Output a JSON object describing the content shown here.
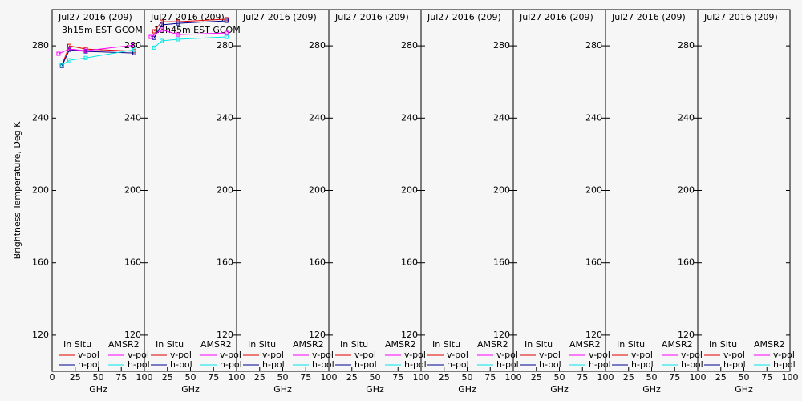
{
  "chart_data": [
    {
      "type": "line",
      "title": "Jul27 2016 (209)",
      "subtitle": "3h15m EST GCOM",
      "y_label": "Brightness Temperature, Deg K",
      "x_label": "GHz",
      "xlim": [
        0,
        100
      ],
      "xticks": [
        0,
        25,
        50,
        75,
        100
      ],
      "ylim": [
        100,
        300
      ],
      "yticks": [
        120,
        160,
        200,
        240,
        280
      ],
      "legend_groups": [
        "In Situ",
        "AMSR2"
      ],
      "series": [
        {
          "name": "v-pol",
          "group": 0,
          "color": "#e00000",
          "x": [
            10.65,
            18.7,
            36.5,
            89
          ],
          "values": [
            269.3,
            280,
            278.2,
            277
          ]
        },
        {
          "name": "h-pol",
          "group": 0,
          "color": "#000090",
          "x": [
            10.65,
            18.7,
            36.5,
            89
          ],
          "values": [
            268.9,
            277.8,
            276.9,
            276
          ]
        },
        {
          "name": "v-pol",
          "group": 1,
          "color": "#ff00ff",
          "x": [
            6.9,
            18.7,
            36.5,
            89
          ],
          "values": [
            275.6,
            278.2,
            277.3,
            280.4
          ]
        },
        {
          "name": "h-pol",
          "group": 1,
          "color": "#00e8e8",
          "x": [
            10.65,
            18.7,
            36.5,
            89
          ],
          "values": [
            269.3,
            272,
            273.3,
            277.8
          ]
        }
      ]
    },
    {
      "type": "line",
      "title": "Jul27 2016 (209)",
      "subtitle": "13h45m EST GCOM",
      "x_label": "GHz",
      "xlim": [
        0,
        100
      ],
      "xticks": [
        25,
        50,
        75,
        100
      ],
      "ylim": [
        100,
        300
      ],
      "yticks": [
        120,
        160,
        200,
        240,
        280
      ],
      "legend_groups": [
        "In Situ",
        "AMSR2"
      ],
      "series": [
        {
          "name": "v-pol",
          "group": 0,
          "color": "#e00000",
          "x": [
            10.65,
            18.7,
            36.5,
            89
          ],
          "values": [
            288,
            293.3,
            293.3,
            294.7
          ]
        },
        {
          "name": "h-pol",
          "group": 0,
          "color": "#000090",
          "x": [
            10.65,
            18.7,
            36.5,
            89
          ],
          "values": [
            284.4,
            291.6,
            292.4,
            293.8
          ]
        },
        {
          "name": "v-pol",
          "group": 1,
          "color": "#ff00ff",
          "x": [
            6.9,
            18.7,
            36.5,
            89
          ],
          "values": [
            284.9,
            288.9,
            286.2,
            287.1
          ]
        },
        {
          "name": "h-pol",
          "group": 1,
          "color": "#00e8e8",
          "x": [
            10.65,
            18.7,
            36.5,
            89
          ],
          "values": [
            279,
            282.7,
            283.6,
            284.9
          ]
        }
      ]
    },
    {
      "type": "line",
      "title": "Jul27 2016 (209)",
      "x_label": "GHz",
      "xlim": [
        0,
        100
      ],
      "xticks": [
        25,
        50,
        75,
        100
      ],
      "ylim": [
        100,
        300
      ],
      "yticks": [
        120,
        160,
        200,
        240,
        280
      ],
      "legend_groups": [
        "In Situ",
        "AMSR2"
      ],
      "series": [
        {
          "name": "v-pol",
          "group": 0,
          "color": "#e00000",
          "x": [],
          "values": []
        },
        {
          "name": "h-pol",
          "group": 0,
          "color": "#000090",
          "x": [],
          "values": []
        },
        {
          "name": "v-pol",
          "group": 1,
          "color": "#ff00ff",
          "x": [],
          "values": []
        },
        {
          "name": "h-pol",
          "group": 1,
          "color": "#00e8e8",
          "x": [],
          "values": []
        }
      ]
    },
    {
      "type": "line",
      "title": "Jul27 2016 (209)",
      "x_label": "GHz",
      "xlim": [
        0,
        100
      ],
      "xticks": [
        25,
        50,
        75,
        100
      ],
      "ylim": [
        100,
        300
      ],
      "yticks": [
        120,
        160,
        200,
        240,
        280
      ],
      "legend_groups": [
        "In Situ",
        "AMSR2"
      ],
      "series": [
        {
          "name": "v-pol",
          "group": 0,
          "color": "#e00000",
          "x": [],
          "values": []
        },
        {
          "name": "h-pol",
          "group": 0,
          "color": "#000090",
          "x": [],
          "values": []
        },
        {
          "name": "v-pol",
          "group": 1,
          "color": "#ff00ff",
          "x": [],
          "values": []
        },
        {
          "name": "h-pol",
          "group": 1,
          "color": "#00e8e8",
          "x": [],
          "values": []
        }
      ]
    },
    {
      "type": "line",
      "title": "Jul27 2016 (209)",
      "x_label": "GHz",
      "xlim": [
        0,
        100
      ],
      "xticks": [
        25,
        50,
        75,
        100
      ],
      "ylim": [
        100,
        300
      ],
      "yticks": [
        120,
        160,
        200,
        240,
        280
      ],
      "legend_groups": [
        "In Situ",
        "AMSR2"
      ],
      "series": [
        {
          "name": "v-pol",
          "group": 0,
          "color": "#e00000",
          "x": [],
          "values": []
        },
        {
          "name": "h-pol",
          "group": 0,
          "color": "#000090",
          "x": [],
          "values": []
        },
        {
          "name": "v-pol",
          "group": 1,
          "color": "#ff00ff",
          "x": [],
          "values": []
        },
        {
          "name": "h-pol",
          "group": 1,
          "color": "#00e8e8",
          "x": [],
          "values": []
        }
      ]
    },
    {
      "type": "line",
      "title": "Jul27 2016 (209)",
      "x_label": "GHz",
      "xlim": [
        0,
        100
      ],
      "xticks": [
        25,
        50,
        75,
        100
      ],
      "ylim": [
        100,
        300
      ],
      "yticks": [
        120,
        160,
        200,
        240,
        280
      ],
      "legend_groups": [
        "In Situ",
        "AMSR2"
      ],
      "series": [
        {
          "name": "v-pol",
          "group": 0,
          "color": "#e00000",
          "x": [],
          "values": []
        },
        {
          "name": "h-pol",
          "group": 0,
          "color": "#000090",
          "x": [],
          "values": []
        },
        {
          "name": "v-pol",
          "group": 1,
          "color": "#ff00ff",
          "x": [],
          "values": []
        },
        {
          "name": "h-pol",
          "group": 1,
          "color": "#00e8e8",
          "x": [],
          "values": []
        }
      ]
    },
    {
      "type": "line",
      "title": "Jul27 2016 (209)",
      "x_label": "GHz",
      "xlim": [
        0,
        100
      ],
      "xticks": [
        25,
        50,
        75,
        100
      ],
      "ylim": [
        100,
        300
      ],
      "yticks": [
        120,
        160,
        200,
        240,
        280
      ],
      "legend_groups": [
        "In Situ",
        "AMSR2"
      ],
      "series": [
        {
          "name": "v-pol",
          "group": 0,
          "color": "#e00000",
          "x": [],
          "values": []
        },
        {
          "name": "h-pol",
          "group": 0,
          "color": "#000090",
          "x": [],
          "values": []
        },
        {
          "name": "v-pol",
          "group": 1,
          "color": "#ff00ff",
          "x": [],
          "values": []
        },
        {
          "name": "h-pol",
          "group": 1,
          "color": "#00e8e8",
          "x": [],
          "values": []
        }
      ]
    },
    {
      "type": "line",
      "title": "Jul27 2016 (209)",
      "x_label": "GHz",
      "xlim": [
        0,
        100
      ],
      "xticks": [
        25,
        50,
        75,
        100
      ],
      "ylim": [
        100,
        300
      ],
      "yticks": [
        120,
        160,
        200,
        240,
        280
      ],
      "legend_groups": [
        "In Situ",
        "AMSR2"
      ],
      "series": [
        {
          "name": "v-pol",
          "group": 0,
          "color": "#e00000",
          "x": [],
          "values": []
        },
        {
          "name": "h-pol",
          "group": 0,
          "color": "#000090",
          "x": [],
          "values": []
        },
        {
          "name": "v-pol",
          "group": 1,
          "color": "#ff00ff",
          "x": [],
          "values": []
        },
        {
          "name": "h-pol",
          "group": 1,
          "color": "#00e8e8",
          "x": [],
          "values": []
        }
      ]
    }
  ]
}
